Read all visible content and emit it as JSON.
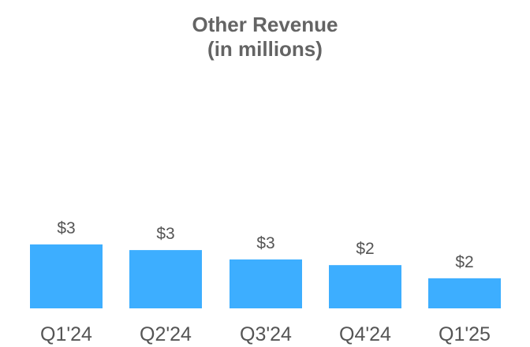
{
  "chart_data": {
    "type": "bar",
    "title": "Other Revenue",
    "subtitle": "(in millions)",
    "categories": [
      "Q1'24",
      "Q2'24",
      "Q3'24",
      "Q4'24",
      "Q1'25"
    ],
    "values": [
      3.4,
      3.1,
      2.6,
      2.3,
      1.6
    ],
    "data_labels": [
      "$3",
      "$3",
      "$3",
      "$2",
      "$2"
    ],
    "ylim": [
      0,
      12.5
    ],
    "grid": false,
    "bar_color": "#3DAEFF"
  }
}
